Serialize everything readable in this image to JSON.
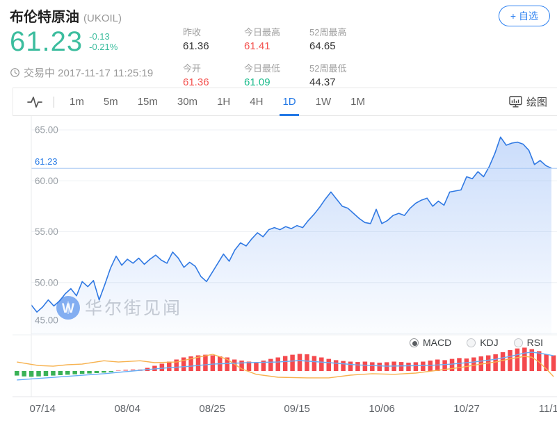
{
  "header": {
    "title": "布伦特原油",
    "symbol": "(UKOIL)",
    "price": "61.23",
    "change": "-0.13",
    "change_pct": "-0.21%",
    "status": "交易中 2017-11-17 11:25:19",
    "watchlist_button": "+ 自选",
    "stats": [
      {
        "label": "昨收",
        "value": "61.36",
        "color": "dark"
      },
      {
        "label": "今日最高",
        "value": "61.41",
        "color": "red"
      },
      {
        "label": "52周最高",
        "value": "64.65",
        "color": "dark"
      },
      {
        "label": "今开",
        "value": "61.36",
        "color": "red"
      },
      {
        "label": "今日最低",
        "value": "61.09",
        "color": "green"
      },
      {
        "label": "52周最低",
        "value": "44.37",
        "color": "dark"
      }
    ]
  },
  "toolbar": {
    "intervals": [
      "1m",
      "5m",
      "15m",
      "30m",
      "1H",
      "4H",
      "1D",
      "1W",
      "1M"
    ],
    "active": "1D",
    "draw_label": "绘图"
  },
  "indicators": {
    "options": [
      "MACD",
      "KDJ",
      "RSI"
    ],
    "selected": "MACD"
  },
  "watermark": {
    "logo_letter": "W",
    "text": "华尔街见闻"
  },
  "colors": {
    "up_red": "#f4524f",
    "down_green": "#1cbc8c",
    "price_green": "#3cbd9e",
    "accent_blue": "#2479e6",
    "line_blue": "#3079e3",
    "grid": "#eef1f4",
    "macd_red": "#f4494d",
    "macd_pink": "#f7a1a5",
    "macd_green": "#3bb257",
    "dea_orange": "#f7b24f",
    "dif_blue": "#66aef5",
    "watermark_blue": "#79a7ef"
  },
  "chart_data": {
    "type": "area",
    "title": "布伦特原油 (UKOIL) 1D",
    "current_price": 61.23,
    "ylim": [
      45,
      65
    ],
    "y_ticks": [
      "65.00",
      "60.00",
      "55.00",
      "50.00",
      "45.00"
    ],
    "y_tick_values": [
      65,
      60,
      55,
      50,
      45
    ],
    "x_ticks": [
      {
        "label": "07/14",
        "index": 2
      },
      {
        "label": "08/04",
        "index": 17
      },
      {
        "label": "08/25",
        "index": 32
      },
      {
        "label": "09/15",
        "index": 47
      },
      {
        "label": "10/06",
        "index": 62
      },
      {
        "label": "10/27",
        "index": 77
      },
      {
        "label": "11/17",
        "index": 92
      }
    ],
    "values": [
      47.8,
      47.1,
      47.6,
      48.3,
      47.7,
      48.2,
      48.9,
      49.4,
      48.7,
      50.1,
      49.6,
      50.2,
      48.3,
      49.8,
      51.4,
      52.6,
      51.7,
      52.3,
      51.9,
      52.4,
      51.8,
      52.3,
      52.7,
      52.2,
      51.9,
      53.0,
      52.4,
      51.5,
      52.0,
      51.6,
      50.6,
      50.1,
      51.0,
      51.9,
      52.8,
      52.1,
      53.2,
      53.9,
      53.6,
      54.3,
      54.9,
      54.5,
      55.2,
      55.4,
      55.2,
      55.5,
      55.3,
      55.6,
      55.4,
      56.1,
      56.7,
      57.4,
      58.2,
      58.9,
      58.2,
      57.5,
      57.3,
      56.8,
      56.3,
      55.9,
      55.8,
      57.2,
      55.8,
      56.1,
      56.6,
      56.8,
      56.6,
      57.3,
      57.8,
      58.1,
      58.3,
      57.5,
      58.0,
      57.6,
      58.9,
      59.0,
      59.1,
      60.4,
      60.2,
      60.9,
      60.4,
      61.4,
      62.7,
      64.3,
      63.5,
      63.7,
      63.8,
      63.6,
      63.0,
      61.6,
      62.0,
      61.5,
      61.23
    ],
    "macd": {
      "hist": [
        -2.2,
        -2.6,
        -2.8,
        -2.6,
        -2.4,
        -2.2,
        -2.0,
        -1.8,
        -1.6,
        -1.4,
        -1.2,
        -1.0,
        -0.8,
        -0.5,
        0.4,
        0.7,
        0.9,
        0.8,
        1.5,
        2.5,
        3.5,
        4.5,
        5.5,
        6.5,
        7.0,
        7.5,
        7.8,
        7.5,
        7.0,
        6.5,
        5.5,
        5.0,
        4.5,
        4.2,
        5.0,
        5.8,
        6.5,
        7.2,
        7.8,
        8.2,
        8.0,
        7.2,
        6.5,
        5.8,
        5.2,
        4.8,
        4.5,
        4.3,
        4.5,
        4.2,
        4.0,
        4.2,
        4.5,
        4.3,
        4.0,
        4.2,
        4.5,
        5.0,
        5.5,
        5.2,
        5.8,
        6.2,
        6.0,
        6.5,
        7.0,
        7.5,
        8.0,
        9.0,
        10.0,
        10.8,
        11.2,
        10.5,
        9.5,
        8.0,
        7.5
      ],
      "dif": [
        [
          0,
          -4.3
        ],
        [
          4,
          -3.3
        ],
        [
          8,
          -2.3
        ],
        [
          12,
          -1.3
        ],
        [
          16,
          0
        ],
        [
          20,
          1.3
        ],
        [
          24,
          2.3
        ],
        [
          27,
          3.3
        ],
        [
          32,
          4.0
        ],
        [
          36,
          4.3
        ],
        [
          39,
          5.0
        ],
        [
          43,
          4.0
        ],
        [
          47,
          2.9
        ],
        [
          51,
          2.3
        ],
        [
          54,
          2.5
        ],
        [
          57,
          2.7
        ],
        [
          60,
          3.3
        ],
        [
          63,
          4.3
        ],
        [
          66,
          5.6
        ],
        [
          68,
          7.0
        ],
        [
          70,
          8.6
        ],
        [
          71,
          9.0
        ],
        [
          72,
          8.6
        ],
        [
          73,
          8.0
        ],
        [
          74,
          7.3
        ]
      ],
      "dea": [
        [
          0,
          4.3
        ],
        [
          3,
          2.6
        ],
        [
          5,
          2.3
        ],
        [
          7,
          3.0
        ],
        [
          9,
          3.3
        ],
        [
          12,
          4.9
        ],
        [
          14,
          4.3
        ],
        [
          17,
          4.9
        ],
        [
          19,
          4.0
        ],
        [
          22,
          4.3
        ],
        [
          25,
          6.6
        ],
        [
          27,
          8.0
        ],
        [
          29,
          5.6
        ],
        [
          31,
          1.0
        ],
        [
          33,
          -1.6
        ],
        [
          36,
          -3.0
        ],
        [
          40,
          -3.3
        ],
        [
          43,
          -3.3
        ],
        [
          46,
          -2.0
        ],
        [
          49,
          -1.3
        ],
        [
          52,
          -1.6
        ],
        [
          55,
          -1.0
        ],
        [
          58,
          0.3
        ],
        [
          61,
          1.6
        ],
        [
          64,
          3.3
        ],
        [
          66,
          4.3
        ],
        [
          68,
          5.8
        ],
        [
          70,
          7.0
        ],
        [
          71,
          6.6
        ],
        [
          72,
          4.3
        ],
        [
          73,
          1.0
        ],
        [
          74,
          -2.7
        ]
      ]
    }
  }
}
